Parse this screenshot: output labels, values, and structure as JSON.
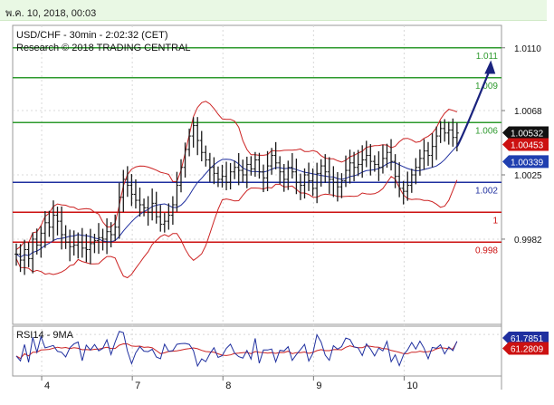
{
  "header": {
    "timestamp": "พ.ค. 10, 2018, 00:03"
  },
  "chart_data": {
    "type": "line",
    "title": "USD/CHF - 30min - 2:02:32 (CET)",
    "subtitle": "Research © 2018 TRADING CENTRAL",
    "price_ylim": [
      0.9925,
      1.0125
    ],
    "y_ticks": [
      "1.0110",
      "1.0068",
      "1.0025",
      "0.9982"
    ],
    "y_tick_values": [
      1.011,
      1.0068,
      1.0025,
      0.9982
    ],
    "x_ticks": [
      "4",
      "7",
      "8",
      "9",
      "10"
    ],
    "x_tick_bar_index": [
      11,
      33,
      55,
      77,
      99
    ],
    "bars_count": 108,
    "current_price": 1.00532,
    "current_price_label": "1.00532",
    "last_red_label": "1.00453",
    "last_blue_label": "1.00339",
    "levels": [
      {
        "value": 1.011,
        "label": "1.011",
        "color": "#2e9a2e"
      },
      {
        "value": 1.009,
        "label": "1.009",
        "color": "#2e9a2e"
      },
      {
        "value": 1.006,
        "label": "1.006",
        "color": "#2e9a2e"
      },
      {
        "value": 1.002,
        "label": "1.002",
        "color": "#1f2f9f"
      },
      {
        "value": 1.0,
        "label": "1",
        "color": "#cc1111"
      },
      {
        "value": 0.998,
        "label": "0.998",
        "color": "#cc1111"
      }
    ],
    "forecast": [
      {
        "bar": 107,
        "value": 1.0044
      },
      {
        "bar": 115,
        "value": 1.0098
      }
    ],
    "close": [
      0.9972,
      0.9968,
      0.9975,
      0.9969,
      0.9982,
      0.9978,
      0.9986,
      0.9993,
      0.999,
      0.9998,
      0.9994,
      0.9985,
      0.998,
      0.9977,
      0.9978,
      0.998,
      0.9976,
      0.9975,
      0.9979,
      0.9981,
      0.9983,
      0.9982,
      0.9987,
      0.9985,
      0.999,
      1.001,
      1.0022,
      1.0018,
      1.0012,
      1.0008,
      1.0005,
      1.0003,
      1.0,
      1.0006,
      0.9997,
      0.9992,
      0.9994,
      0.9998,
      1.0005,
      1.0018,
      1.003,
      1.0042,
      1.0051,
      1.0058,
      1.0048,
      1.004,
      1.0035,
      1.003,
      1.0026,
      1.0022,
      1.0024,
      1.002,
      1.0027,
      1.003,
      1.0028,
      1.0025,
      1.0032,
      1.0029,
      1.0035,
      1.0027,
      1.0023,
      1.0031,
      1.0038,
      1.0033,
      1.0027,
      1.0022,
      1.003,
      1.0027,
      1.002,
      1.0018,
      1.0025,
      1.0021,
      1.0016,
      1.0026,
      1.0031,
      1.0027,
      1.0022,
      1.002,
      1.0017,
      1.0021,
      1.0028,
      1.0033,
      1.003,
      1.0032,
      1.0035,
      1.0038,
      1.0034,
      1.0032,
      1.003,
      1.0036,
      1.004,
      1.0034,
      1.0024,
      1.0016,
      1.0014,
      1.0018,
      1.0025,
      1.003,
      1.0036,
      1.0041,
      1.0038,
      1.0044,
      1.0051,
      1.0056,
      1.0053,
      1.0055,
      1.005,
      1.0053
    ],
    "rsi": {
      "name": "RSI14 - 9MA",
      "ylim": [
        20,
        80
      ],
      "tick": "70",
      "last": 61.7851,
      "ma_last": 61.2809,
      "last_label": "61.7851",
      "ma_last_label": "61.2809"
    },
    "colors": {
      "bands": "#cc2222",
      "ma": "#1f2f9f",
      "rsi": "#1f2f9f",
      "rsi_ma": "#cc2222",
      "forecast": "#1a237e",
      "bars": "#1a1a1a"
    },
    "grid": true
  }
}
